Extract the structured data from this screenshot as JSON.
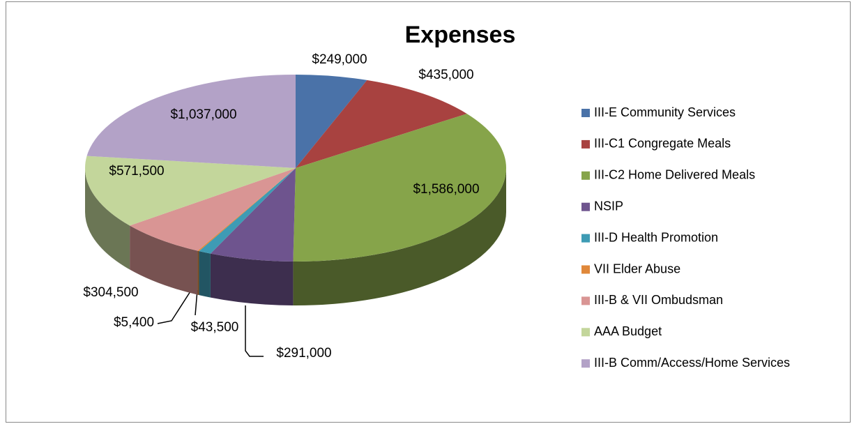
{
  "chart_data": {
    "type": "pie",
    "title": "Expenses",
    "categories": [
      "III-E Community Services",
      "III-C1 Congregate Meals",
      "III-C2 Home Delivered Meals",
      "NSIP",
      "III-D Health Promotion",
      "VII Elder Abuse",
      "III-B & VII Ombudsman",
      "AAA Budget",
      "III-B Comm/Access/Home Services"
    ],
    "values": [
      249000,
      435000,
      1586000,
      291000,
      43500,
      5400,
      304500,
      571500,
      1037000
    ],
    "value_labels": [
      "$249,000",
      "$435,000",
      "$1,586,000",
      "$291,000",
      "$43,500",
      "$5,400",
      "$304,500",
      "$571,500",
      "$1,037,000"
    ],
    "colors": [
      "#4a72a8",
      "#a84240",
      "#86a44a",
      "#6e548e",
      "#3e9bb4",
      "#e0883a",
      "#d99594",
      "#c3d69b",
      "#b3a2c7"
    ],
    "legend": "right"
  }
}
